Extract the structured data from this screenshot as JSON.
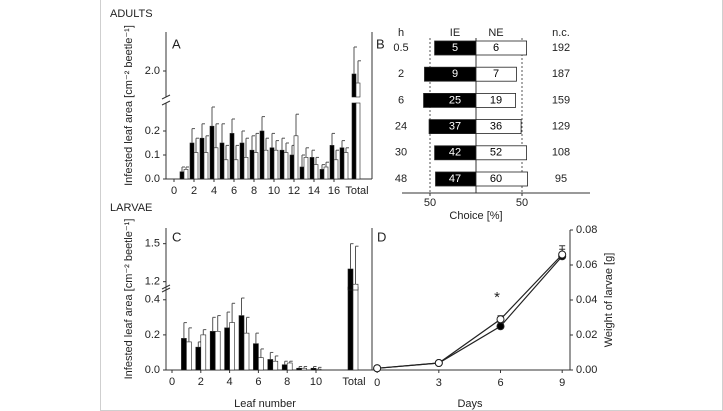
{
  "chart_data": [
    {
      "type": "bar",
      "section": "ADULTS",
      "label": "A",
      "ylabel": "Infested leaf area [cm⁻² beetle⁻¹]",
      "x": [
        1,
        2,
        3,
        4,
        5,
        6,
        7,
        8,
        9,
        10,
        11,
        12,
        13,
        14,
        15,
        16,
        17
      ],
      "xticks": [
        0,
        2,
        4,
        6,
        8,
        10,
        12,
        14,
        16
      ],
      "total_label": "Total",
      "ylim": [
        0,
        0.3
      ],
      "ylim_upper": [
        1.6,
        2.6
      ],
      "yticks": [
        {
          "value": 0,
          "label": "0.0"
        },
        0.1,
        0.2,
        {
          "value": 2,
          "label": "2.0"
        }
      ],
      "series": [
        {
          "color": "#000000",
          "values": [
            0.03,
            0.15,
            0.17,
            0.22,
            0.15,
            0.19,
            0.15,
            0.12,
            0.2,
            0.13,
            0.12,
            0.1,
            0.05,
            0.09,
            0.04,
            0.14,
            0.13
          ],
          "errors": [
            0.02,
            0.06,
            0.06,
            0.08,
            0.08,
            0.06,
            0.05,
            0.06,
            0.06,
            0.06,
            0.05,
            0.04,
            0.05,
            0.03,
            0.02,
            0.05,
            0.03
          ],
          "total": 1.95,
          "total_error": 0.45
        },
        {
          "color": "#ffffff",
          "values": [
            0.04,
            0.11,
            0.11,
            0.13,
            0.08,
            0.08,
            0.09,
            0.11,
            0.12,
            0.12,
            0.11,
            0.18,
            0.09,
            0.06,
            0.05,
            0.08,
            0.11
          ],
          "errors": [
            0.01,
            0.06,
            0.07,
            0.1,
            0.06,
            0.06,
            0.08,
            0.08,
            0.05,
            0.04,
            0.04,
            0.09,
            0.04,
            0.03,
            0.02,
            0.04,
            0.02
          ],
          "total": 1.8,
          "total_error": 0.37
        }
      ]
    },
    {
      "type": "diverging_bar",
      "label": "B",
      "row_header": "h",
      "rows": [
        0.5,
        2,
        6,
        24,
        30,
        48
      ],
      "series": [
        {
          "name": "IE",
          "color": "#000000",
          "label_color": "#ffffff",
          "side": "left",
          "values": [
            45,
            56,
            57,
            51,
            45,
            44
          ],
          "counts": [
            5,
            9,
            25,
            37,
            42,
            47
          ]
        },
        {
          "name": "NE",
          "color": "#ffffff",
          "label_color": "#000000",
          "side": "right",
          "values": [
            55,
            44,
            43,
            49,
            55,
            56
          ],
          "counts": [
            6,
            7,
            19,
            36,
            52,
            60
          ]
        }
      ],
      "nc_header": "n.c.",
      "nc": [
        192,
        187,
        159,
        129,
        108,
        95
      ],
      "xlabel": "Choice [%]",
      "xlim": [
        -60,
        60
      ],
      "xticks": [
        {
          "value": -50,
          "label": "50"
        },
        50
      ]
    },
    {
      "type": "bar",
      "section": "LARVAE",
      "label": "C",
      "ylabel": "Infested leaf area [cm⁻² beetle⁻¹]",
      "xlabel": "Leaf number",
      "x": [
        1,
        2,
        3,
        4,
        5,
        6,
        7,
        8,
        9,
        10
      ],
      "xticks": [
        0,
        2,
        4,
        6,
        8,
        10
      ],
      "total_label": "Total",
      "ylim": [
        0,
        0.45
      ],
      "ylim_upper": [
        1.15,
        1.6
      ],
      "yticks": [
        {
          "value": 0,
          "label": "0.0"
        },
        0.2,
        0.4,
        1.2,
        1.5
      ],
      "series": [
        {
          "color": "#000000",
          "values": [
            0.18,
            0.13,
            0.22,
            0.24,
            0.31,
            0.15,
            0.06,
            0.03,
            0.01,
            0.01
          ],
          "errors": [
            0.09,
            0.03,
            0.08,
            0.09,
            0.1,
            0.06,
            0.04,
            0.02,
            0.01,
            0.01
          ],
          "total": 1.3,
          "total_error": 0.2
        },
        {
          "color": "#ffffff",
          "values": [
            0.16,
            0.2,
            0.22,
            0.27,
            0.21,
            0.07,
            0.05,
            0.04,
            0.01,
            0.005
          ],
          "errors": [
            0.08,
            0.03,
            0.09,
            0.11,
            0.09,
            0.05,
            0.03,
            0.01,
            0.01,
            0.01
          ],
          "total": 1.18,
          "total_error": 0.3
        }
      ]
    },
    {
      "type": "line",
      "label": "D",
      "xlabel": "Days",
      "y2label": "Weight of larvae [g]",
      "annotation": "*",
      "x": [
        0,
        3,
        6,
        9
      ],
      "xlim": [
        -0.25,
        9.38
      ],
      "xticks": [
        0,
        3,
        6,
        9
      ],
      "y2lim": [
        0,
        0.08
      ],
      "y2ticks": [
        {
          "value": 0,
          "label": "0.00"
        },
        {
          "value": 0.02,
          "label": "0.02"
        },
        {
          "value": 0.04,
          "label": "0.04"
        },
        {
          "value": 0.06,
          "label": "0.06"
        },
        {
          "value": 0.08,
          "label": "0.08"
        }
      ],
      "series": [
        {
          "color": "#000000",
          "values": [
            0.001,
            0.004,
            0.025,
            0.065
          ],
          "errors": [
            0,
            0,
            0.002,
            0.004
          ],
          "axis": "y2"
        },
        {
          "color": "#ffffff",
          "values": [
            0.001,
            0.004,
            0.029,
            0.066
          ],
          "errors": [
            0,
            0,
            0.002,
            0.005
          ],
          "axis": "y2"
        }
      ]
    }
  ]
}
